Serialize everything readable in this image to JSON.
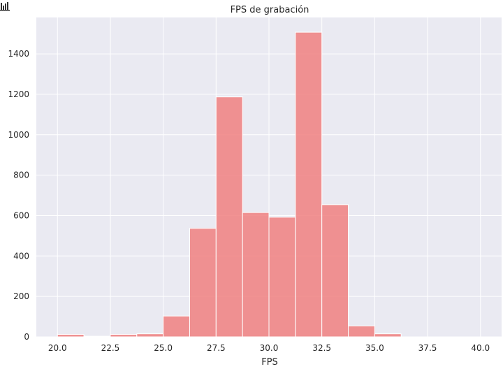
{
  "toolbar": {
    "icon": "bar-chart-icon"
  },
  "chart_data": {
    "type": "bar",
    "title": "FPS de grabación",
    "xlabel": "FPS",
    "ylabel": "",
    "xlim": [
      19.0,
      41.0
    ],
    "ylim": [
      0,
      1580
    ],
    "grid": true,
    "legend": "none",
    "bar_color": "#f08080",
    "background": "#eaeaf2",
    "x_ticks": [
      20.0,
      22.5,
      25.0,
      27.5,
      30.0,
      32.5,
      35.0,
      37.5,
      40.0
    ],
    "x_tick_labels": [
      "20.0",
      "22.5",
      "25.0",
      "27.5",
      "30.0",
      "32.5",
      "35.0",
      "37.5",
      "40.0"
    ],
    "y_ticks": [
      0,
      200,
      400,
      600,
      800,
      1000,
      1200,
      1400
    ],
    "y_tick_labels": [
      "0",
      "200",
      "400",
      "600",
      "800",
      "1000",
      "1200",
      "1400"
    ],
    "bins": [
      {
        "x0": 20.0,
        "x1": 21.25,
        "value": 12
      },
      {
        "x0": 21.25,
        "x1": 22.5,
        "value": 3
      },
      {
        "x0": 22.5,
        "x1": 23.75,
        "value": 12
      },
      {
        "x0": 23.75,
        "x1": 25.0,
        "value": 15
      },
      {
        "x0": 25.0,
        "x1": 26.25,
        "value": 103
      },
      {
        "x0": 26.25,
        "x1": 27.5,
        "value": 537
      },
      {
        "x0": 27.5,
        "x1": 28.75,
        "value": 1187
      },
      {
        "x0": 28.75,
        "x1": 30.0,
        "value": 615
      },
      {
        "x0": 30.0,
        "x1": 31.25,
        "value": 592
      },
      {
        "x0": 31.25,
        "x1": 32.5,
        "value": 1507
      },
      {
        "x0": 32.5,
        "x1": 33.75,
        "value": 654
      },
      {
        "x0": 33.75,
        "x1": 35.0,
        "value": 54
      },
      {
        "x0": 35.0,
        "x1": 36.25,
        "value": 15
      }
    ]
  }
}
